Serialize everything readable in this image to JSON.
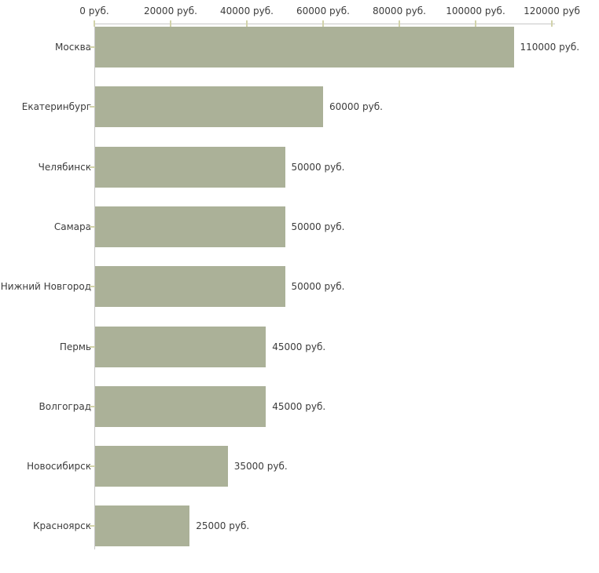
{
  "chart_data": {
    "type": "bar",
    "orientation": "horizontal",
    "title": "",
    "xlabel": "",
    "ylabel": "",
    "unit": "руб.",
    "categories": [
      "Москва",
      "Екатеринбург",
      "Челябинск",
      "Самара",
      "Нижний Новгород",
      "Пермь",
      "Волгоград",
      "Новосибирск",
      "Красноярск"
    ],
    "values": [
      110000,
      60000,
      50000,
      50000,
      50000,
      45000,
      45000,
      35000,
      25000
    ],
    "value_labels": [
      "110000 руб.",
      "60000 руб.",
      "50000 руб.",
      "50000 руб.",
      "50000 руб.",
      "45000 руб.",
      "45000 руб.",
      "35000 руб.",
      "25000 руб."
    ],
    "x_ticks": [
      0,
      20000,
      40000,
      60000,
      80000,
      100000,
      120000
    ],
    "x_tick_labels": [
      "0 руб.",
      "20000 руб.",
      "40000 руб.",
      "60000 руб.",
      "80000 руб.",
      "100000 руб.",
      "120000 руб"
    ],
    "xlim": [
      0,
      120000
    ],
    "grid": false,
    "legend": "none",
    "axis_position": "top-left",
    "colors": {
      "bar_fill": "#abb198",
      "axis_line": "#c6c6c6",
      "tick_mark": "#d2d3ab",
      "text": "#3c3c3c",
      "background": "#ffffff"
    }
  }
}
